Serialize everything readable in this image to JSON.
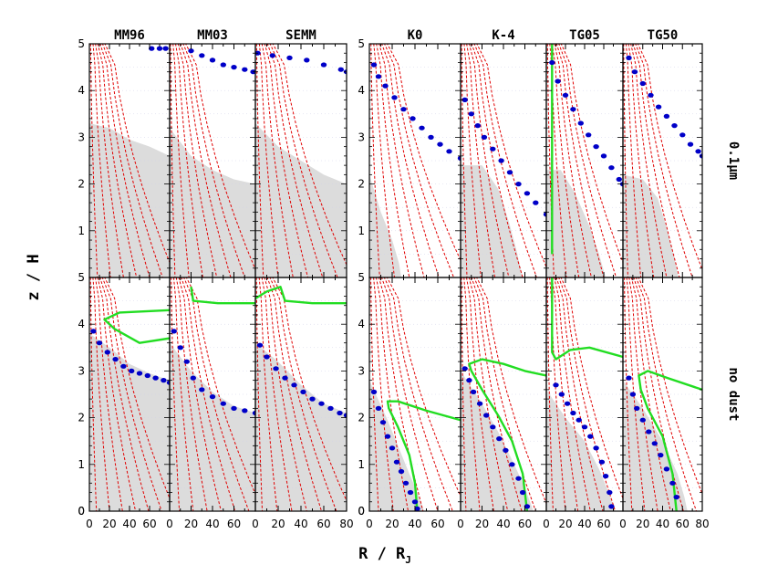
{
  "chart_data": {
    "type": "line",
    "title": "",
    "ylabel": "z / H",
    "xlabel_main": "R / R",
    "xlabel_sub": "J",
    "ylim": [
      0,
      5
    ],
    "yticks": [
      "0",
      "1",
      "2",
      "3",
      "4",
      "5"
    ],
    "group_left": {
      "xlim": [
        0,
        80
      ],
      "xtick_labels": [
        [
          "0",
          "20",
          "40",
          "60"
        ],
        [
          "0",
          "20",
          "40",
          "60"
        ],
        [
          "0",
          "20",
          "40",
          "60",
          "80"
        ]
      ]
    },
    "group_right": {
      "xlim": [
        0,
        80
      ],
      "xtick_labels": [
        [
          "0",
          "20",
          "40",
          "60"
        ],
        [
          "0",
          "20",
          "40",
          "60"
        ],
        [
          "0",
          "20",
          "40",
          "60"
        ],
        [
          "0",
          "20",
          "40",
          "60",
          "80"
        ]
      ]
    },
    "columns": [
      "MM96",
      "MM03",
      "SEMM",
      "K0",
      "K-4",
      "TG05",
      "TG50"
    ],
    "rows": [
      "0.1μm",
      "no dust"
    ],
    "colors": {
      "shade": "#dcdcdc",
      "contour": "#e00000",
      "dots": "#0000c8",
      "green": "#22dd22",
      "frame": "#000000"
    },
    "panels": [
      {
        "col": "MM96",
        "row": "0.1μm",
        "shade": [
          [
            0,
            3.3
          ],
          [
            20,
            3.2
          ],
          [
            40,
            2.95
          ],
          [
            60,
            2.8
          ],
          [
            80,
            2.6
          ]
        ],
        "dots": [
          [
            62,
            4.9
          ],
          [
            70,
            4.9
          ],
          [
            76,
            4.9
          ]
        ],
        "green": []
      },
      {
        "col": "MM03",
        "row": "0.1μm",
        "shade": [
          [
            0,
            3.2
          ],
          [
            20,
            2.6
          ],
          [
            40,
            2.3
          ],
          [
            60,
            2.1
          ],
          [
            80,
            2.0
          ]
        ],
        "dots": [
          [
            20,
            4.85
          ],
          [
            30,
            4.75
          ],
          [
            40,
            4.65
          ],
          [
            50,
            4.55
          ],
          [
            60,
            4.5
          ],
          [
            70,
            4.45
          ],
          [
            78,
            4.4
          ]
        ],
        "green": []
      },
      {
        "col": "SEMM",
        "row": "0.1μm",
        "shade": [
          [
            0,
            3.3
          ],
          [
            20,
            2.8
          ],
          [
            40,
            2.5
          ],
          [
            60,
            2.2
          ],
          [
            80,
            2.0
          ]
        ],
        "dots": [
          [
            2,
            4.8
          ],
          [
            15,
            4.75
          ],
          [
            30,
            4.7
          ],
          [
            45,
            4.65
          ],
          [
            60,
            4.55
          ],
          [
            75,
            4.45
          ],
          [
            80,
            4.4
          ]
        ],
        "green": []
      },
      {
        "col": "K0",
        "row": "0.1μm",
        "shade": [
          [
            0,
            2.2
          ],
          [
            10,
            1.4
          ],
          [
            20,
            0.8
          ],
          [
            26,
            0.3
          ],
          [
            28,
            0
          ]
        ],
        "dots": [
          [
            4,
            4.55
          ],
          [
            8,
            4.3
          ],
          [
            14,
            4.1
          ],
          [
            22,
            3.85
          ],
          [
            30,
            3.6
          ],
          [
            38,
            3.4
          ],
          [
            46,
            3.2
          ],
          [
            54,
            3.0
          ],
          [
            62,
            2.85
          ],
          [
            70,
            2.7
          ],
          [
            80,
            2.55
          ]
        ],
        "green": []
      },
      {
        "col": "K-4",
        "row": "0.1μm",
        "shade": [
          [
            0,
            2.4
          ],
          [
            20,
            2.4
          ],
          [
            35,
            1.9
          ],
          [
            45,
            1.2
          ],
          [
            52,
            0.6
          ],
          [
            58,
            0
          ]
        ],
        "dots": [
          [
            4,
            3.8
          ],
          [
            10,
            3.5
          ],
          [
            16,
            3.25
          ],
          [
            22,
            3.0
          ],
          [
            30,
            2.75
          ],
          [
            38,
            2.5
          ],
          [
            46,
            2.25
          ],
          [
            54,
            2.0
          ],
          [
            62,
            1.8
          ],
          [
            70,
            1.6
          ],
          [
            80,
            1.35
          ]
        ],
        "green": []
      },
      {
        "col": "TG05",
        "row": "0.1μm",
        "shade": [
          [
            0,
            2.3
          ],
          [
            15,
            2.3
          ],
          [
            30,
            1.8
          ],
          [
            45,
            1.1
          ],
          [
            55,
            0.5
          ],
          [
            62,
            0
          ]
        ],
        "dots": [
          [
            6,
            4.6
          ],
          [
            12,
            4.2
          ],
          [
            20,
            3.9
          ],
          [
            28,
            3.6
          ],
          [
            36,
            3.3
          ],
          [
            44,
            3.05
          ],
          [
            52,
            2.8
          ],
          [
            60,
            2.6
          ],
          [
            68,
            2.35
          ],
          [
            76,
            2.1
          ],
          [
            80,
            2.0
          ]
        ],
        "green": [
          [
            6,
            5
          ],
          [
            6,
            3
          ],
          [
            6,
            0.5
          ]
        ]
      },
      {
        "col": "TG50",
        "row": "0.1μm",
        "shade": [
          [
            0,
            2.2
          ],
          [
            20,
            2.1
          ],
          [
            35,
            1.7
          ],
          [
            45,
            1.0
          ],
          [
            52,
            0.4
          ],
          [
            56,
            0
          ]
        ],
        "dots": [
          [
            6,
            4.7
          ],
          [
            12,
            4.4
          ],
          [
            20,
            4.15
          ],
          [
            28,
            3.9
          ],
          [
            36,
            3.65
          ],
          [
            44,
            3.45
          ],
          [
            52,
            3.25
          ],
          [
            60,
            3.05
          ],
          [
            68,
            2.85
          ],
          [
            76,
            2.7
          ],
          [
            80,
            2.6
          ]
        ],
        "green": []
      },
      {
        "col": "MM96",
        "row": "no dust",
        "shade": [
          [
            0,
            3.8
          ],
          [
            20,
            3.5
          ],
          [
            40,
            3.15
          ],
          [
            60,
            2.95
          ],
          [
            80,
            2.8
          ]
        ],
        "dots": [
          [
            4,
            3.85
          ],
          [
            10,
            3.6
          ],
          [
            18,
            3.4
          ],
          [
            26,
            3.25
          ],
          [
            34,
            3.1
          ],
          [
            42,
            3.0
          ],
          [
            50,
            2.95
          ],
          [
            58,
            2.9
          ],
          [
            66,
            2.85
          ],
          [
            74,
            2.8
          ],
          [
            80,
            2.75
          ]
        ],
        "green": [
          [
            80,
            3.7
          ],
          [
            50,
            3.6
          ],
          [
            25,
            3.9
          ],
          [
            15,
            4.1
          ],
          [
            30,
            4.25
          ],
          [
            80,
            4.3
          ]
        ]
      },
      {
        "col": "MM03",
        "row": "no dust",
        "shade": [
          [
            0,
            3.6
          ],
          [
            20,
            3.0
          ],
          [
            40,
            2.55
          ],
          [
            60,
            2.25
          ],
          [
            80,
            2.1
          ]
        ],
        "dots": [
          [
            4,
            3.85
          ],
          [
            10,
            3.5
          ],
          [
            16,
            3.2
          ],
          [
            22,
            2.85
          ],
          [
            30,
            2.6
          ],
          [
            40,
            2.45
          ],
          [
            50,
            2.3
          ],
          [
            60,
            2.2
          ],
          [
            70,
            2.15
          ],
          [
            80,
            2.1
          ]
        ],
        "green": [
          [
            20,
            4.8
          ],
          [
            22,
            4.5
          ],
          [
            45,
            4.45
          ],
          [
            80,
            4.45
          ]
        ]
      },
      {
        "col": "SEMM",
        "row": "no dust",
        "shade": [
          [
            0,
            3.6
          ],
          [
            20,
            3.2
          ],
          [
            40,
            2.7
          ],
          [
            60,
            2.3
          ],
          [
            80,
            2.1
          ]
        ],
        "dots": [
          [
            4,
            3.55
          ],
          [
            10,
            3.3
          ],
          [
            18,
            3.05
          ],
          [
            26,
            2.85
          ],
          [
            34,
            2.7
          ],
          [
            42,
            2.55
          ],
          [
            50,
            2.4
          ],
          [
            58,
            2.3
          ],
          [
            66,
            2.2
          ],
          [
            74,
            2.1
          ],
          [
            80,
            2.05
          ]
        ],
        "green": [
          [
            0,
            4.55
          ],
          [
            10,
            4.7
          ],
          [
            22,
            4.8
          ],
          [
            26,
            4.5
          ],
          [
            50,
            4.45
          ],
          [
            80,
            4.45
          ]
        ]
      },
      {
        "col": "K0",
        "row": "no dust",
        "shade": [
          [
            0,
            2.8
          ],
          [
            15,
            2.0
          ],
          [
            25,
            1.4
          ],
          [
            35,
            0.8
          ],
          [
            42,
            0.4
          ],
          [
            48,
            0
          ]
        ],
        "dots": [
          [
            4,
            2.55
          ],
          [
            8,
            2.2
          ],
          [
            12,
            1.9
          ],
          [
            16,
            1.6
          ],
          [
            20,
            1.35
          ],
          [
            24,
            1.05
          ],
          [
            28,
            0.85
          ],
          [
            32,
            0.6
          ],
          [
            36,
            0.4
          ],
          [
            40,
            0.2
          ],
          [
            42,
            0.05
          ]
        ],
        "green": [
          [
            42,
            0
          ],
          [
            40,
            0.6
          ],
          [
            35,
            1.2
          ],
          [
            25,
            1.8
          ],
          [
            17,
            2.2
          ],
          [
            16,
            2.35
          ],
          [
            25,
            2.35
          ],
          [
            50,
            2.15
          ],
          [
            80,
            1.95
          ]
        ]
      },
      {
        "col": "K-4",
        "row": "no dust",
        "shade": [
          [
            0,
            3.0
          ],
          [
            20,
            2.3
          ],
          [
            35,
            1.7
          ],
          [
            50,
            1.0
          ],
          [
            60,
            0.5
          ],
          [
            68,
            0
          ]
        ],
        "dots": [
          [
            4,
            3.05
          ],
          [
            8,
            2.8
          ],
          [
            12,
            2.55
          ],
          [
            18,
            2.3
          ],
          [
            24,
            2.05
          ],
          [
            30,
            1.8
          ],
          [
            36,
            1.55
          ],
          [
            42,
            1.3
          ],
          [
            48,
            1.0
          ],
          [
            54,
            0.7
          ],
          [
            58,
            0.4
          ],
          [
            62,
            0.1
          ]
        ],
        "green": [
          [
            62,
            0
          ],
          [
            58,
            0.8
          ],
          [
            48,
            1.5
          ],
          [
            35,
            2.05
          ],
          [
            20,
            2.6
          ],
          [
            10,
            3.0
          ],
          [
            8,
            3.15
          ],
          [
            20,
            3.25
          ],
          [
            40,
            3.15
          ],
          [
            60,
            3.0
          ],
          [
            80,
            2.9
          ]
        ]
      },
      {
        "col": "TG05",
        "row": "no dust",
        "shade": [
          [
            0,
            2.6
          ],
          [
            20,
            2.0
          ],
          [
            40,
            1.5
          ],
          [
            55,
            0.9
          ],
          [
            65,
            0.4
          ],
          [
            72,
            0
          ]
        ],
        "dots": [
          [
            10,
            2.7
          ],
          [
            16,
            2.5
          ],
          [
            22,
            2.3
          ],
          [
            28,
            2.1
          ],
          [
            34,
            1.95
          ],
          [
            40,
            1.8
          ],
          [
            46,
            1.6
          ],
          [
            52,
            1.35
          ],
          [
            58,
            1.05
          ],
          [
            62,
            0.75
          ],
          [
            66,
            0.4
          ],
          [
            68,
            0.1
          ]
        ],
        "green": [
          [
            6,
            5
          ],
          [
            6,
            3.4
          ],
          [
            10,
            3.25
          ],
          [
            25,
            3.45
          ],
          [
            45,
            3.5
          ],
          [
            80,
            3.3
          ]
        ]
      },
      {
        "col": "TG50",
        "row": "no dust",
        "shade": [
          [
            0,
            2.8
          ],
          [
            20,
            2.2
          ],
          [
            40,
            1.5
          ],
          [
            55,
            0.8
          ],
          [
            62,
            0.3
          ],
          [
            65,
            0
          ]
        ],
        "dots": [
          [
            6,
            2.85
          ],
          [
            10,
            2.5
          ],
          [
            14,
            2.2
          ],
          [
            20,
            1.95
          ],
          [
            26,
            1.7
          ],
          [
            32,
            1.45
          ],
          [
            38,
            1.2
          ],
          [
            44,
            0.9
          ],
          [
            50,
            0.6
          ],
          [
            54,
            0.3
          ]
        ],
        "green": [
          [
            54,
            0
          ],
          [
            50,
            0.8
          ],
          [
            40,
            1.6
          ],
          [
            25,
            2.2
          ],
          [
            18,
            2.6
          ],
          [
            16,
            2.9
          ],
          [
            25,
            3.0
          ],
          [
            45,
            2.85
          ],
          [
            80,
            2.6
          ]
        ]
      }
    ]
  }
}
